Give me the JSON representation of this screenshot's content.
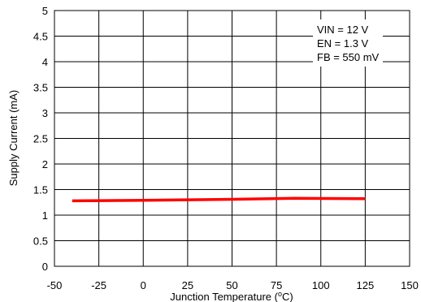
{
  "chart_data": {
    "type": "line",
    "xlabel": "Junction Temperature (",
    "xlabel_sup": "o",
    "xlabel_suffix": "C)",
    "ylabel": "Supply Current (mA)",
    "xlim": [
      -50,
      150
    ],
    "ylim": [
      0,
      5
    ],
    "x_ticks": [
      -50,
      -25,
      0,
      25,
      50,
      75,
      100,
      125,
      150
    ],
    "x_tick_labels": [
      "-50",
      "-25",
      "0",
      "25",
      "50",
      "75",
      "100",
      "125",
      "150"
    ],
    "y_ticks": [
      0,
      0.5,
      1,
      1.5,
      2,
      2.5,
      3,
      3.5,
      4,
      4.5,
      5
    ],
    "y_tick_labels": [
      "0",
      "0.5",
      "1",
      "1.5",
      "2",
      "2.5",
      "3",
      "3.5",
      "4",
      "4.5",
      "5"
    ],
    "grid": true,
    "annotations": [
      "VIN = 12 V",
      "EN = 1.3 V",
      "FB = 550 mV"
    ],
    "series": [
      {
        "color": "#ff0000",
        "x": [
          -40,
          0,
          25,
          50,
          85,
          125
        ],
        "y": [
          1.28,
          1.29,
          1.3,
          1.31,
          1.33,
          1.32
        ]
      }
    ]
  }
}
